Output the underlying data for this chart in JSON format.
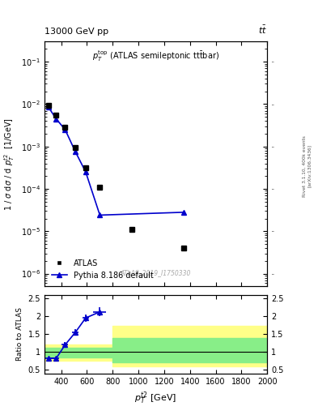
{
  "title_left": "13000 GeV pp",
  "title_right": "tt",
  "watermark": "ATLAS_2019_I1750330",
  "main_ylabel": "1 / σ dσ / d p_T^{t2}  [1/GeV]",
  "ratio_ylabel": "Ratio to ATLAS",
  "xlabel": "p_T^{t2} [GeV]",
  "xlim": [
    270,
    2000
  ],
  "main_ylim": [
    5e-07,
    0.3
  ],
  "ratio_ylim": [
    0.4,
    2.6
  ],
  "atlas_x": [
    300,
    360,
    430,
    510,
    590,
    700,
    950,
    1350
  ],
  "atlas_y": [
    0.0095,
    0.0055,
    0.0028,
    0.00095,
    0.00032,
    0.00011,
    1.1e-05,
    4e-06
  ],
  "pythia_x": [
    300,
    360,
    430,
    510,
    590,
    700,
    1350
  ],
  "pythia_y": [
    0.0085,
    0.0045,
    0.0025,
    0.00075,
    0.00025,
    2.4e-05,
    2.8e-05
  ],
  "pythia_yerr_lo": [
    0.00015,
    8e-05,
    4e-05,
    1.2e-05,
    4e-06,
    5e-07,
    5e-07
  ],
  "pythia_yerr_hi": [
    0.00015,
    8e-05,
    4e-05,
    1.2e-05,
    4e-06,
    5e-07,
    5e-07
  ],
  "ratio_x": [
    300,
    360,
    430,
    510,
    590,
    700
  ],
  "ratio_y": [
    0.83,
    0.82,
    1.2,
    1.55,
    1.95,
    2.12
  ],
  "ratio_xerr_lo": [
    30,
    25,
    25,
    25,
    25,
    50
  ],
  "ratio_xerr_hi": [
    30,
    25,
    25,
    25,
    25,
    50
  ],
  "ratio_yerr_lo": [
    0.05,
    0.05,
    0.07,
    0.08,
    0.1,
    0.12
  ],
  "ratio_yerr_hi": [
    0.05,
    0.05,
    0.07,
    0.08,
    0.1,
    0.12
  ],
  "atlas_color": "black",
  "pythia_color": "#0000cc",
  "legend_atlas_label": "ATLAS",
  "legend_pythia_label": "Pythia 8.186 default"
}
